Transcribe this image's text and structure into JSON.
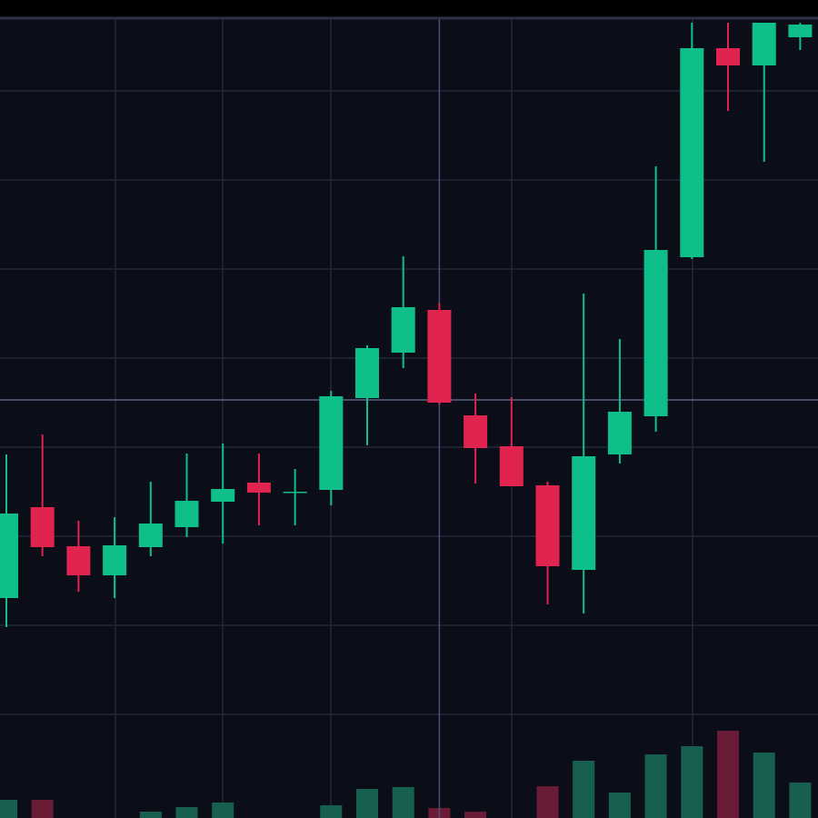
{
  "chart_data": {
    "type": "candlestick",
    "open": [
      242,
      342,
      299,
      267,
      298,
      320,
      348,
      369,
      358,
      361,
      462,
      512,
      559,
      443,
      409,
      366,
      273,
      400,
      442,
      617,
      847,
      828,
      859
    ],
    "high": [
      400,
      422,
      327,
      331,
      370,
      401,
      412,
      401,
      384,
      470,
      520,
      618,
      567,
      467,
      463,
      370,
      577,
      527,
      717,
      875,
      875,
      875,
      875
    ],
    "low": [
      210,
      288,
      249,
      242,
      288,
      309,
      302,
      322,
      322,
      344,
      410,
      495,
      455,
      368,
      365,
      235,
      225,
      390,
      425,
      615,
      778,
      722,
      845
    ],
    "close": [
      335,
      298,
      267,
      300,
      324,
      349,
      362,
      358,
      359,
      464,
      517,
      562,
      457,
      407,
      365,
      277,
      398,
      447,
      625,
      847,
      828,
      875,
      873
    ],
    "volume": [
      20,
      20,
      0,
      0,
      7,
      12,
      17,
      0,
      0,
      14,
      32,
      34,
      11,
      7,
      0,
      35,
      63,
      28,
      70,
      79,
      96,
      72,
      39
    ],
    "up_color": "#0fbf8a",
    "down_color": "#e0234f",
    "volume_up_color": "#17604f",
    "volume_down_color": "#6a1c36",
    "ylim": [
      0,
      900
    ],
    "yticks": [
      114,
      212,
      310,
      408,
      506,
      604,
      702,
      800
    ],
    "grid": true,
    "crosshair": {
      "category_index": 12,
      "value": 460
    }
  }
}
